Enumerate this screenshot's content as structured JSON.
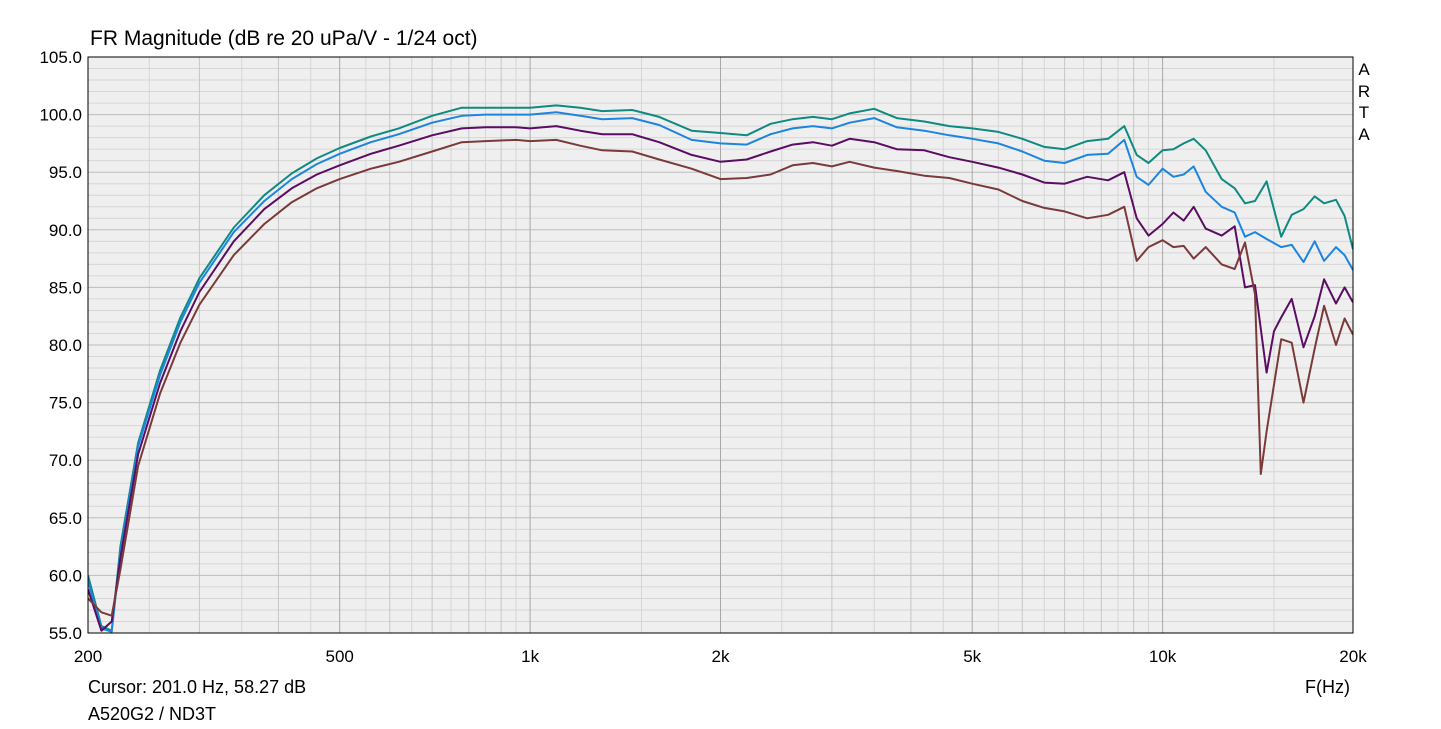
{
  "chart_data": {
    "type": "line",
    "title": "FR Magnitude (dB re 20 uPa/V - 1/24 oct)",
    "x_scale": "log",
    "xlim": [
      200,
      20000
    ],
    "ylim": [
      55,
      105
    ],
    "yticks": [
      "55.0",
      "60.0",
      "65.0",
      "70.0",
      "75.0",
      "80.0",
      "85.0",
      "90.0",
      "95.0",
      "100.0",
      "105.0"
    ],
    "ytick_values": [
      55,
      60,
      65,
      70,
      75,
      80,
      85,
      90,
      95,
      100,
      105
    ],
    "xticks": [
      {
        "label": "200",
        "value": 200
      },
      {
        "label": "500",
        "value": 500
      },
      {
        "label": "1k",
        "value": 1000
      },
      {
        "label": "2k",
        "value": 2000
      },
      {
        "label": "5k",
        "value": 5000
      },
      {
        "label": "10k",
        "value": 10000
      },
      {
        "label": "20k",
        "value": 20000
      }
    ],
    "xlabel": "F(Hz)",
    "grid": true,
    "background": "#efefef",
    "series": [
      {
        "color": "#0f8a80",
        "x": [
          200,
          210,
          218,
          225,
          240,
          260,
          280,
          300,
          340,
          380,
          420,
          460,
          500,
          560,
          620,
          700,
          780,
          850,
          950,
          1000,
          1100,
          1200,
          1300,
          1450,
          1600,
          1800,
          2000,
          2200,
          2400,
          2600,
          2800,
          3000,
          3200,
          3500,
          3800,
          4200,
          4600,
          5000,
          5500,
          6000,
          6500,
          7000,
          7600,
          8200,
          8700,
          9100,
          9500,
          10000,
          10400,
          10800,
          11200,
          11700,
          12400,
          13000,
          13500,
          14000,
          14600,
          15400,
          16000,
          16700,
          17400,
          18000,
          18800,
          19400,
          20000
        ],
        "y": [
          60,
          55.6,
          55.2,
          62.5,
          71.5,
          77.8,
          82.4,
          85.8,
          90.2,
          93.0,
          94.9,
          96.2,
          97.1,
          98.1,
          98.8,
          99.9,
          100.6,
          100.6,
          100.6,
          100.6,
          100.8,
          100.6,
          100.3,
          100.4,
          99.8,
          98.6,
          98.4,
          98.2,
          99.2,
          99.6,
          99.8,
          99.6,
          100.1,
          100.5,
          99.7,
          99.4,
          99.0,
          98.8,
          98.5,
          97.9,
          97.2,
          97.0,
          97.7,
          97.9,
          99.0,
          96.5,
          95.8,
          96.9,
          97.0,
          97.5,
          97.9,
          96.9,
          94.4,
          93.6,
          92.3,
          92.5,
          94.2,
          89.4,
          91.3,
          91.8,
          92.9,
          92.3,
          92.6,
          91.2,
          88.3
        ]
      },
      {
        "color": "#1c85e0",
        "x": [
          200,
          210,
          218,
          225,
          240,
          260,
          280,
          300,
          340,
          380,
          420,
          460,
          500,
          560,
          620,
          700,
          780,
          850,
          950,
          1000,
          1100,
          1200,
          1300,
          1450,
          1600,
          1800,
          2000,
          2200,
          2400,
          2600,
          2800,
          3000,
          3200,
          3500,
          3800,
          4200,
          4600,
          5000,
          5500,
          6000,
          6500,
          7000,
          7600,
          8200,
          8700,
          9100,
          9500,
          10000,
          10400,
          10800,
          11200,
          11700,
          12400,
          13000,
          13500,
          14000,
          14600,
          15400,
          16000,
          16700,
          17400,
          18000,
          18800,
          19400,
          20000
        ],
        "y": [
          59.5,
          55.4,
          55.1,
          62.0,
          71.2,
          77.4,
          82.0,
          85.4,
          89.8,
          92.5,
          94.4,
          95.7,
          96.6,
          97.6,
          98.3,
          99.3,
          99.9,
          100.0,
          100.0,
          100.0,
          100.2,
          99.9,
          99.6,
          99.7,
          99.1,
          97.8,
          97.5,
          97.4,
          98.3,
          98.8,
          99.0,
          98.8,
          99.3,
          99.7,
          98.9,
          98.6,
          98.2,
          97.9,
          97.5,
          96.8,
          96.0,
          95.8,
          96.5,
          96.6,
          97.8,
          94.6,
          93.9,
          95.3,
          94.6,
          94.8,
          95.5,
          93.3,
          92.0,
          91.5,
          89.4,
          89.8,
          89.2,
          88.5,
          88.7,
          87.2,
          89.0,
          87.3,
          88.5,
          87.8,
          86.5
        ]
      },
      {
        "color": "#5a0d62",
        "x": [
          200,
          210,
          218,
          225,
          240,
          260,
          280,
          300,
          340,
          380,
          420,
          460,
          500,
          560,
          620,
          700,
          780,
          850,
          950,
          1000,
          1100,
          1200,
          1300,
          1450,
          1600,
          1800,
          2000,
          2200,
          2400,
          2600,
          2800,
          3000,
          3200,
          3500,
          3800,
          4200,
          4600,
          5000,
          5500,
          6000,
          6500,
          7000,
          7600,
          8200,
          8700,
          9100,
          9500,
          10000,
          10400,
          10800,
          11200,
          11700,
          12400,
          13000,
          13500,
          14000,
          14600,
          15000,
          15400,
          16000,
          16700,
          17400,
          18000,
          18800,
          19400,
          20000
        ],
        "y": [
          58.8,
          55.2,
          56.0,
          61.5,
          70.5,
          76.7,
          81.2,
          84.6,
          89.0,
          91.8,
          93.6,
          94.8,
          95.6,
          96.6,
          97.3,
          98.2,
          98.8,
          98.9,
          98.9,
          98.8,
          99.0,
          98.6,
          98.3,
          98.3,
          97.6,
          96.5,
          95.9,
          96.1,
          96.8,
          97.4,
          97.6,
          97.3,
          97.9,
          97.6,
          97.0,
          96.9,
          96.3,
          95.9,
          95.4,
          94.8,
          94.1,
          94.0,
          94.6,
          94.3,
          95.0,
          91.0,
          89.5,
          90.5,
          91.5,
          90.8,
          92.0,
          90.1,
          89.5,
          90.3,
          85.0,
          85.2,
          77.6,
          81.2,
          82.4,
          84.0,
          79.8,
          82.5,
          85.7,
          83.6,
          85.0,
          83.7
        ]
      },
      {
        "color": "#7a3a3a",
        "x": [
          200,
          210,
          218,
          225,
          240,
          260,
          280,
          300,
          340,
          380,
          420,
          460,
          500,
          560,
          620,
          700,
          780,
          850,
          950,
          1000,
          1100,
          1200,
          1300,
          1450,
          1600,
          1800,
          2000,
          2200,
          2400,
          2600,
          2800,
          3000,
          3200,
          3500,
          3800,
          4200,
          4600,
          5000,
          5500,
          6000,
          6500,
          7000,
          7600,
          8200,
          8700,
          9100,
          9500,
          10000,
          10400,
          10800,
          11200,
          11700,
          12400,
          13000,
          13500,
          14000,
          14300,
          14600,
          15400,
          16000,
          16700,
          17400,
          18000,
          18800,
          19400,
          20000
        ],
        "y": [
          58.0,
          56.8,
          56.5,
          60.5,
          69.5,
          75.8,
          80.2,
          83.5,
          87.8,
          90.5,
          92.4,
          93.6,
          94.4,
          95.3,
          95.9,
          96.8,
          97.6,
          97.7,
          97.8,
          97.7,
          97.8,
          97.3,
          96.9,
          96.8,
          96.1,
          95.3,
          94.4,
          94.5,
          94.8,
          95.6,
          95.8,
          95.5,
          95.9,
          95.4,
          95.1,
          94.7,
          94.5,
          94.0,
          93.5,
          92.5,
          91.9,
          91.6,
          91.0,
          91.3,
          92.0,
          87.3,
          88.5,
          89.1,
          88.5,
          88.6,
          87.5,
          88.5,
          87.0,
          86.6,
          88.9,
          84.4,
          68.8,
          72.5,
          80.5,
          80.2,
          75.0,
          79.7,
          83.4,
          80.0,
          82.3,
          80.9
        ]
      }
    ]
  },
  "labels": {
    "title": "FR Magnitude (dB re 20 uPa/V - 1/24 oct)",
    "cursor": "Cursor: 201.0 Hz, 58.27 dB",
    "subtitle": "A520G2 / ND3T",
    "xunit": "F(Hz)",
    "watermark": [
      "A",
      "R",
      "T",
      "A"
    ]
  }
}
